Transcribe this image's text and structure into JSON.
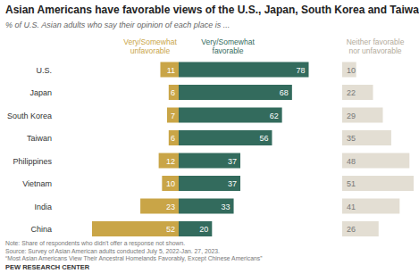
{
  "chart_data": {
    "type": "bar",
    "orientation": "horizontal",
    "stacked": false,
    "data_labels": true,
    "title": "Asian Americans have favorable views of the U.S., Japan, South Korea and Taiwan",
    "subtitle": "% of U.S. Asian adults who say their opinion of each place is ...",
    "categories": [
      "U.S.",
      "Japan",
      "South Korea",
      "Taiwan",
      "Philippines",
      "Vietnam",
      "India",
      "China"
    ],
    "series": [
      {
        "name": "Very/Somewhat unfavorable",
        "color": "#c9a547",
        "values": [
          11,
          6,
          7,
          6,
          12,
          10,
          23,
          52
        ]
      },
      {
        "name": "Very/Somewhat favorable",
        "color": "#336b5d",
        "values": [
          78,
          68,
          62,
          56,
          37,
          37,
          33,
          20
        ]
      },
      {
        "name": "Neither favorable nor unfavorable",
        "color": "#e3ded3",
        "values": [
          10,
          22,
          29,
          35,
          48,
          51,
          41,
          26
        ]
      }
    ],
    "notes": [
      "Note: Share of respondents who didn't offer a response not shown.",
      "Source: Survey of Asian American adults conducted July 5, 2022-Jan. 27, 2023.",
      "“Most Asian Americans View Their Ancestral Homelands Favorably, Except Chinese Americans”"
    ],
    "source_label": "PEW RESEARCH CENTER"
  }
}
